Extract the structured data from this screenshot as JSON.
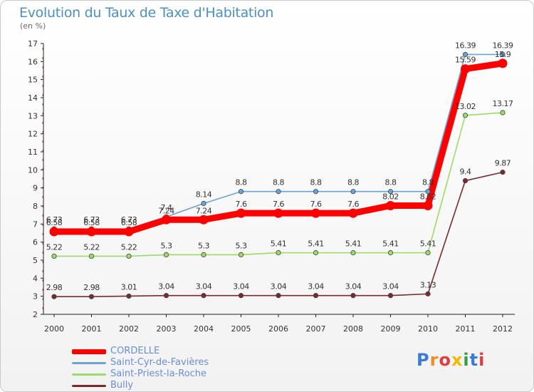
{
  "header": {
    "title": "Evolution du Taux de Taxe d'Habitation",
    "subtitle": "(en %)"
  },
  "logo": {
    "text": "Proxiti"
  },
  "chart_data": {
    "type": "line",
    "title": "Evolution du Taux de Taxe d'Habitation",
    "ylabel": "(en %)",
    "xlabel": "",
    "x": [
      "2000",
      "2001",
      "2002",
      "2003",
      "2004",
      "2005",
      "2006",
      "2007",
      "2008",
      "2009",
      "2010",
      "2011",
      "2012"
    ],
    "ylim": [
      2,
      17
    ],
    "y_ticks": [
      2,
      3,
      4,
      5,
      6,
      7,
      8,
      9,
      10,
      11,
      12,
      13,
      14,
      15,
      16,
      17
    ],
    "grid": false,
    "legend_position": "bottom-left",
    "series": [
      {
        "name": "CORDELLE",
        "color": "#ff0000",
        "values": [
          6.58,
          6.58,
          6.58,
          7.24,
          7.24,
          7.6,
          7.6,
          7.6,
          7.6,
          8.02,
          8.02,
          15.59,
          15.9
        ],
        "labels": [
          "6.58",
          "6.58",
          "6.58",
          "7.24",
          "7.24",
          "7.6",
          "7.6",
          "7.6",
          "7.6",
          "8.02",
          "8.02",
          "15.59",
          "15.9"
        ]
      },
      {
        "name": "Saint-Cyr-de-Favières",
        "color": "#6ba3d6",
        "values": [
          6.73,
          6.73,
          6.73,
          7.4,
          8.14,
          8.8,
          8.8,
          8.8,
          8.8,
          8.8,
          8.8,
          16.39,
          16.39
        ],
        "labels": [
          "6.73",
          "6.73",
          "6.73",
          "7.4",
          "8.14",
          "8.8",
          "8.8",
          "8.8",
          "8.8",
          "8.8",
          "8.8",
          "16.39",
          "16.39"
        ]
      },
      {
        "name": "Saint-Priest-la-Roche",
        "color": "#99dd66",
        "values": [
          5.22,
          5.22,
          5.22,
          5.3,
          5.3,
          5.3,
          5.41,
          5.41,
          5.41,
          5.41,
          5.41,
          13.02,
          13.17
        ],
        "labels": [
          "5.22",
          "5.22",
          "5.22",
          "5.3",
          "5.3",
          "5.3",
          "5.41",
          "5.41",
          "5.41",
          "5.41",
          "5.41",
          "13.02",
          "13.17"
        ]
      },
      {
        "name": "Bully",
        "color": "#7a2a2a",
        "values": [
          2.98,
          2.98,
          3.01,
          3.04,
          3.04,
          3.04,
          3.04,
          3.04,
          3.04,
          3.04,
          3.13,
          9.4,
          9.87
        ],
        "labels": [
          "2.98",
          "2.98",
          "3.01",
          "3.04",
          "3.04",
          "3.04",
          "3.04",
          "3.04",
          "3.04",
          "3.04",
          "3.13",
          "9.4",
          "9.87"
        ]
      }
    ]
  }
}
